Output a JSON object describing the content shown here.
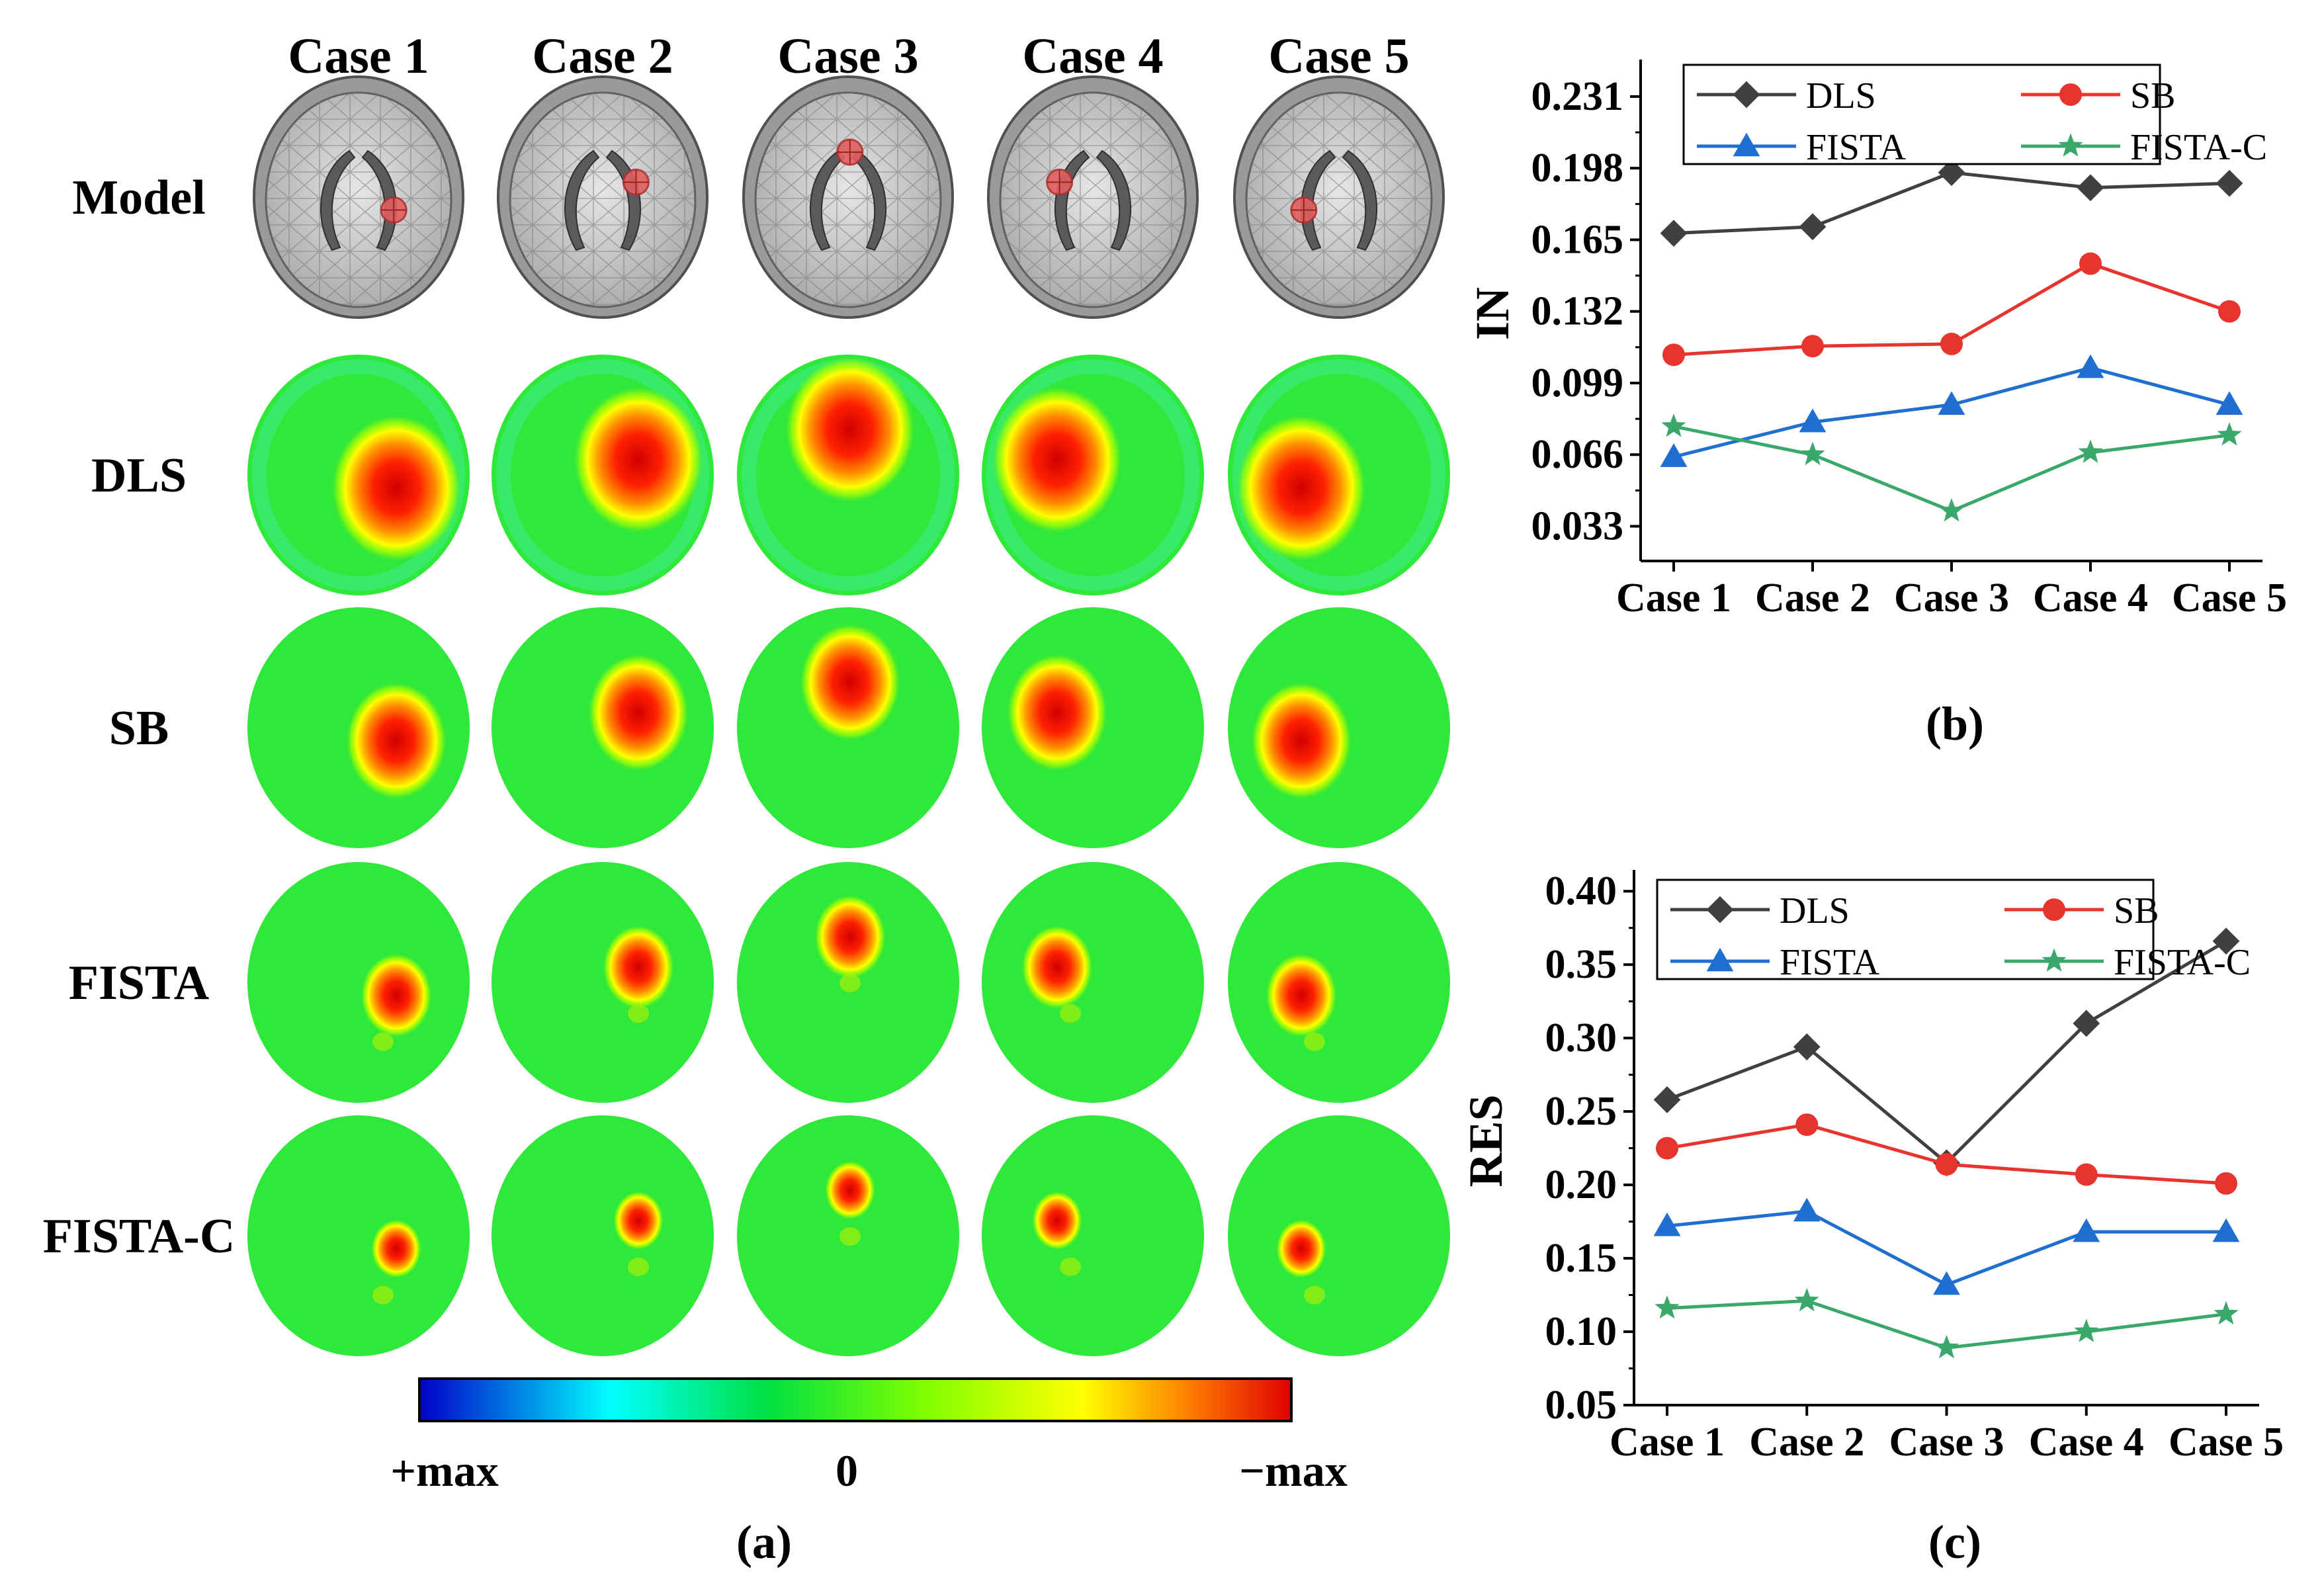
{
  "panel_a": {
    "caption": "(a)",
    "case_labels": [
      "Case 1",
      "Case 2",
      "Case 3",
      "Case 4",
      "Case 5"
    ],
    "row_labels": [
      "Model",
      "DLS",
      "SB",
      "FISTA",
      "FISTA-C"
    ],
    "inclusion_positions": [
      {
        "case": "Case 1",
        "side": "right-middle"
      },
      {
        "case": "Case 2",
        "side": "right-upper"
      },
      {
        "case": "Case 3",
        "side": "top-center"
      },
      {
        "case": "Case 4",
        "side": "left-upper"
      },
      {
        "case": "Case 5",
        "side": "left-middle"
      }
    ],
    "colorbar": {
      "labels": [
        "+max",
        "0",
        "−max"
      ],
      "colors": [
        "#0000c8",
        "#00ffff",
        "#00e040",
        "#80ff00",
        "#ffff00",
        "#ff8000",
        "#e00000"
      ]
    }
  },
  "chart_data": [
    {
      "type": "line",
      "panel": "(b)",
      "title": "",
      "xlabel": "",
      "ylabel": "IN",
      "categories": [
        "Case 1",
        "Case 2",
        "Case 3",
        "Case 4",
        "Case 5"
      ],
      "yticks": [
        "0.033",
        "0.066",
        "0.099",
        "0.132",
        "0.165",
        "0.198",
        "0.231"
      ],
      "ylim": [
        0.017,
        0.245
      ],
      "legend_position": "top",
      "series": [
        {
          "name": "DLS",
          "color": "#404040",
          "marker": "diamond",
          "values": [
            0.168,
            0.171,
            0.196,
            0.189,
            0.191
          ]
        },
        {
          "name": "SB",
          "color": "#e8342e",
          "marker": "circle",
          "values": [
            0.112,
            0.116,
            0.117,
            0.154,
            0.132
          ]
        },
        {
          "name": "FISTA",
          "color": "#1f6fd0",
          "marker": "triangle",
          "values": [
            0.065,
            0.081,
            0.089,
            0.106,
            0.089
          ]
        },
        {
          "name": "FISTA-C",
          "color": "#3aa86a",
          "marker": "star",
          "values": [
            0.079,
            0.066,
            0.04,
            0.067,
            0.075
          ]
        }
      ]
    },
    {
      "type": "line",
      "panel": "(c)",
      "title": "",
      "xlabel": "",
      "ylabel": "RES",
      "categories": [
        "Case 1",
        "Case 2",
        "Case 3",
        "Case 4",
        "Case 5"
      ],
      "yticks": [
        "0.05",
        "0.10",
        "0.15",
        "0.20",
        "0.25",
        "0.30",
        "0.35",
        "0.40"
      ],
      "ylim": [
        0.05,
        0.41
      ],
      "legend_position": "top",
      "series": [
        {
          "name": "DLS",
          "color": "#404040",
          "marker": "diamond",
          "values": [
            0.258,
            0.294,
            0.215,
            0.31,
            0.366
          ]
        },
        {
          "name": "SB",
          "color": "#e8342e",
          "marker": "circle",
          "values": [
            0.225,
            0.241,
            0.214,
            0.207,
            0.201
          ]
        },
        {
          "name": "FISTA",
          "color": "#1f6fd0",
          "marker": "triangle",
          "values": [
            0.172,
            0.182,
            0.132,
            0.168,
            0.168
          ]
        },
        {
          "name": "FISTA-C",
          "color": "#3aa86a",
          "marker": "star",
          "values": [
            0.116,
            0.121,
            0.089,
            0.1,
            0.112
          ]
        }
      ]
    }
  ]
}
